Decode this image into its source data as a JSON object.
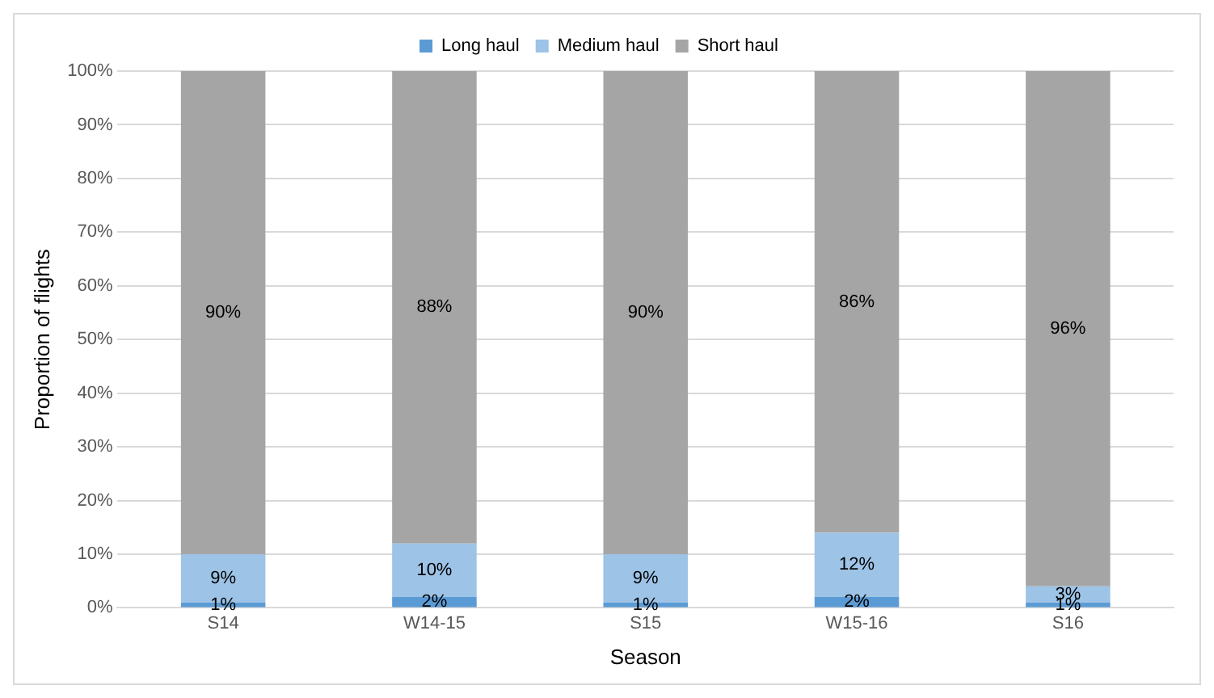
{
  "chart_data": {
    "type": "bar",
    "stacked": true,
    "xlabel": "Season",
    "ylabel": "Proportion of flights",
    "categories": [
      "S14",
      "W14-15",
      "S15",
      "W15-16",
      "S16"
    ],
    "series": [
      {
        "name": "Long haul",
        "color": "#5b9bd5",
        "values": [
          1,
          2,
          1,
          2,
          1
        ],
        "value_labels": [
          "1%",
          "2%",
          "1%",
          "2%",
          "1%"
        ]
      },
      {
        "name": "Medium haul",
        "color": "#9dc3e6",
        "values": [
          9,
          10,
          9,
          12,
          3
        ],
        "value_labels": [
          "9%",
          "10%",
          "9%",
          "12%",
          "3%"
        ]
      },
      {
        "name": "Short haul",
        "color": "#a5a5a5",
        "values": [
          90,
          88,
          90,
          86,
          96
        ],
        "value_labels": [
          "90%",
          "88%",
          "90%",
          "86%",
          "96%"
        ]
      }
    ],
    "ylim": [
      0,
      100
    ],
    "yticks": [
      {
        "value": 0,
        "label": "0%"
      },
      {
        "value": 10,
        "label": "10%"
      },
      {
        "value": 20,
        "label": "20%"
      },
      {
        "value": 30,
        "label": "30%"
      },
      {
        "value": 40,
        "label": "40%"
      },
      {
        "value": 50,
        "label": "50%"
      },
      {
        "value": 60,
        "label": "60%"
      },
      {
        "value": 70,
        "label": "70%"
      },
      {
        "value": 80,
        "label": "80%"
      },
      {
        "value": 90,
        "label": "90%"
      },
      {
        "value": 100,
        "label": "100%"
      }
    ],
    "grid": "y",
    "legend": "top"
  }
}
